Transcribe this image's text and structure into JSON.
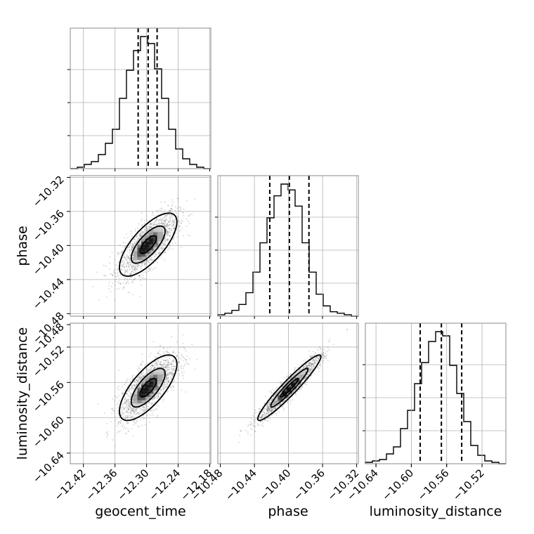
{
  "chart_data": {
    "type": "corner",
    "parameters": [
      "geocent_time",
      "phase",
      "luminosity_distance"
    ],
    "grid": true,
    "axes": {
      "geocent_time": {
        "label": "geocent_time",
        "range": [
          -12.445,
          -12.178
        ],
        "ticks": [
          -12.42,
          -12.36,
          -12.3,
          -12.24,
          -12.18
        ],
        "tick_labels": [
          "−12.42",
          "−12.36",
          "−12.30",
          "−12.24",
          "−12.18"
        ]
      },
      "phase": {
        "label": "phase",
        "range": [
          -10.483,
          -10.318
        ],
        "ticks": [
          -10.48,
          -10.44,
          -10.4,
          -10.36,
          -10.32
        ],
        "tick_labels": [
          "−10.48",
          "−10.44",
          "−10.40",
          "−10.36",
          "−10.32"
        ]
      },
      "luminosity_distance": {
        "label": "luminosity_distance",
        "range": [
          -10.652,
          -10.493
        ],
        "ticks": [
          -10.64,
          -10.6,
          -10.56,
          -10.52
        ],
        "tick_labels": [
          "−10.64",
          "−10.60",
          "−10.56",
          "−10.52"
        ]
      }
    },
    "y_tick_labels_row2": [
      "−10.48",
      "−10.52",
      "−10.56",
      "−10.60",
      "−10.64"
    ],
    "histograms": [
      {
        "parameter": "geocent_time",
        "bins": 20,
        "counts": [
          0,
          1,
          3,
          5,
          10,
          18,
          28,
          50,
          70,
          84,
          94,
          89,
          71,
          50,
          28,
          14,
          7,
          3,
          1,
          0
        ],
        "quantiles": [
          -12.316,
          -12.297,
          -12.28
        ]
      },
      {
        "parameter": "phase",
        "bins": 20,
        "counts": [
          1,
          2,
          4,
          8,
          16,
          30,
          50,
          67,
          82,
          90,
          86,
          75,
          50,
          30,
          15,
          7,
          3,
          2,
          1,
          0
        ],
        "quantiles": [
          -10.422,
          -10.399,
          -10.376
        ]
      },
      {
        "parameter": "luminosity_distance",
        "bins": 20,
        "counts": [
          1,
          2,
          3,
          7,
          12,
          25,
          38,
          57,
          72,
          87,
          94,
          91,
          70,
          50,
          30,
          13,
          6,
          2,
          1,
          0
        ],
        "quantiles": [
          -10.59,
          -10.566,
          -10.543
        ]
      }
    ],
    "scatter_panels": [
      {
        "x": "geocent_time",
        "y": "phase",
        "mean": [
          -12.297,
          -10.399
        ],
        "sd": [
          0.028,
          0.019
        ],
        "correlation": 0.72
      },
      {
        "x": "geocent_time",
        "y": "luminosity_distance",
        "mean": [
          -12.297,
          -10.566
        ],
        "sd": [
          0.028,
          0.019
        ],
        "correlation": 0.72
      },
      {
        "x": "phase",
        "y": "luminosity_distance",
        "mean": [
          -10.399,
          -10.566
        ],
        "sd": [
          0.019,
          0.019
        ],
        "correlation": 0.95
      }
    ],
    "colors": {
      "points": "#555555",
      "contours": "#000000",
      "grid": "#b0b0b0",
      "axes": "#000000"
    }
  }
}
